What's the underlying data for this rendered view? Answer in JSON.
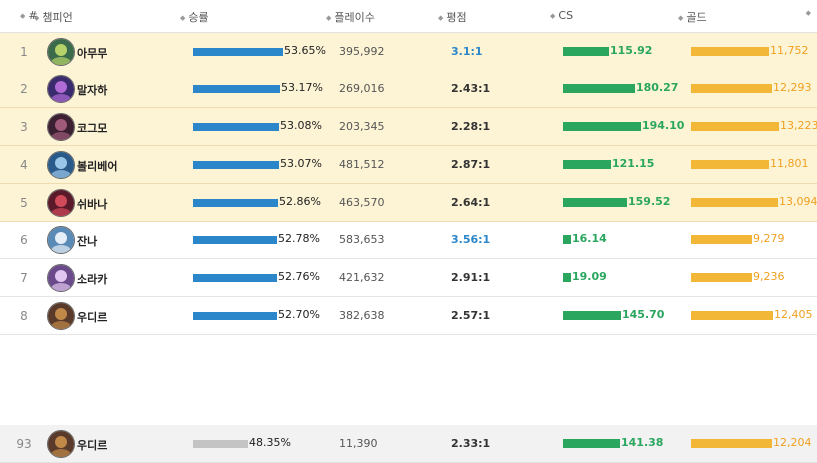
{
  "header": {
    "rank": "#",
    "champion": "챔피언",
    "winrate": "승률",
    "plays": "플레이수",
    "kda": "평점",
    "cs": "CS",
    "gold": "골드"
  },
  "colors": {
    "winrate_bar": "#2b87c9",
    "winrate_bar_low": "#c4c4c4",
    "cs_bar": "#2aa65f",
    "gold_bar": "#f2b736",
    "highlight_row": "#fdf4d6"
  },
  "rows": [
    {
      "rank": "1",
      "champion": "아무무",
      "winrate": "53.65%",
      "winrate_value": 53.65,
      "plays": "395,992",
      "kda": "3.1:1",
      "cs": "115.92",
      "cs_value": 115.92,
      "gold": "11,752",
      "gold_value": 11752
    },
    {
      "rank": "2",
      "champion": "말자하",
      "winrate": "53.17%",
      "winrate_value": 53.17,
      "plays": "269,016",
      "kda": "2.43:1",
      "cs": "180.27",
      "cs_value": 180.27,
      "gold": "12,293",
      "gold_value": 12293
    },
    {
      "rank": "3",
      "champion": "코그모",
      "winrate": "53.08%",
      "winrate_value": 53.08,
      "plays": "203,345",
      "kda": "2.28:1",
      "cs": "194.10",
      "cs_value": 194.1,
      "gold": "13,223",
      "gold_value": 13223
    },
    {
      "rank": "4",
      "champion": "볼리베어",
      "winrate": "53.07%",
      "winrate_value": 53.07,
      "plays": "481,512",
      "kda": "2.87:1",
      "cs": "121.15",
      "cs_value": 121.15,
      "gold": "11,801",
      "gold_value": 11801
    },
    {
      "rank": "5",
      "champion": "쉬바나",
      "winrate": "52.86%",
      "winrate_value": 52.86,
      "plays": "463,570",
      "kda": "2.64:1",
      "cs": "159.52",
      "cs_value": 159.52,
      "gold": "13,094",
      "gold_value": 13094
    },
    {
      "rank": "6",
      "champion": "잔나",
      "winrate": "52.78%",
      "winrate_value": 52.78,
      "plays": "583,653",
      "kda": "3.56:1",
      "cs": "16.14",
      "cs_value": 16.14,
      "gold": "9,279",
      "gold_value": 9279
    },
    {
      "rank": "7",
      "champion": "소라카",
      "winrate": "52.76%",
      "winrate_value": 52.76,
      "plays": "421,632",
      "kda": "2.91:1",
      "cs": "19.09",
      "cs_value": 19.09,
      "gold": "9,236",
      "gold_value": 9236
    },
    {
      "rank": "8",
      "champion": "우디르",
      "winrate": "52.70%",
      "winrate_value": 52.7,
      "plays": "382,638",
      "kda": "2.57:1",
      "cs": "145.70",
      "cs_value": 145.7,
      "gold": "12,405",
      "gold_value": 12405
    },
    {
      "rank": "93",
      "champion": "우디르",
      "winrate": "48.35%",
      "winrate_value": 48.35,
      "plays": "11,390",
      "kda": "2.33:1",
      "cs": "141.38",
      "cs_value": 141.38,
      "gold": "12,204",
      "gold_value": 12204
    }
  ]
}
